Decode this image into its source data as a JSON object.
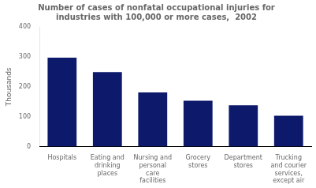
{
  "chart_data": {
    "type": "bar",
    "title": "Number of cases of nonfatal occupational injuries for\nindustries with 100,000 or more cases,  2002",
    "categories": [
      "Hospitals",
      "Eating and\ndrinking\nplaces",
      "Nursing and\npersonal\ncare\nfacilities",
      "Grocery\nstores",
      "Department\nstores",
      "Trucking\nand courier\nservices,\nexcept air"
    ],
    "values": [
      297,
      249,
      181,
      153,
      138,
      103
    ],
    "color": "#0d1a6b",
    "ylabel": "Thousands",
    "ylim": [
      0,
      400
    ],
    "yticks": [
      0,
      100,
      200,
      300,
      400
    ],
    "grid": false
  }
}
